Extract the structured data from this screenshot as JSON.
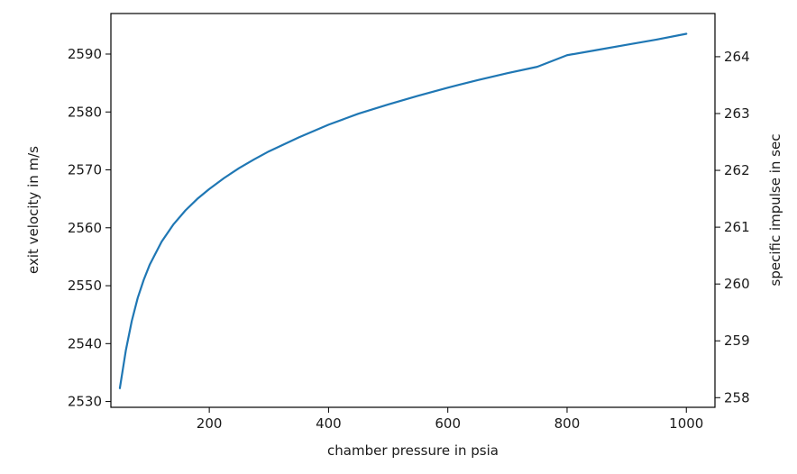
{
  "chart_data": {
    "type": "line",
    "title": "",
    "xlabel": "chamber pressure in psia",
    "ylabel": "exit velocity in m/s",
    "ylabel_right": "specific impulse in sec",
    "xlim": [
      35,
      1048
    ],
    "ylim": [
      2529,
      2597
    ],
    "ylim_right": [
      257.83,
      264.76
    ],
    "xticks": [
      200,
      400,
      600,
      800,
      1000
    ],
    "yticks": [
      2530,
      2540,
      2550,
      2560,
      2570,
      2580,
      2590
    ],
    "yticks_right": [
      258,
      259,
      260,
      261,
      262,
      263,
      264
    ],
    "grid": false,
    "line_color": "#1f77b4",
    "series": [
      {
        "x": [
          50,
          60,
          70,
          80,
          90,
          100,
          120,
          140,
          160,
          180,
          200,
          225,
          250,
          275,
          300,
          350,
          400,
          450,
          500,
          550,
          600,
          650,
          700,
          750,
          800,
          850,
          900,
          950,
          1000
        ],
        "values": [
          2532.3,
          2538.8,
          2543.9,
          2547.9,
          2551.0,
          2553.6,
          2557.6,
          2560.6,
          2563.0,
          2565.0,
          2566.7,
          2568.6,
          2570.3,
          2571.8,
          2573.2,
          2575.6,
          2577.8,
          2579.7,
          2581.3,
          2582.8,
          2584.2,
          2585.5,
          2586.7,
          2587.8,
          2589.8,
          2590.7,
          2591.6,
          2592.5,
          2593.5
        ]
      }
    ]
  }
}
